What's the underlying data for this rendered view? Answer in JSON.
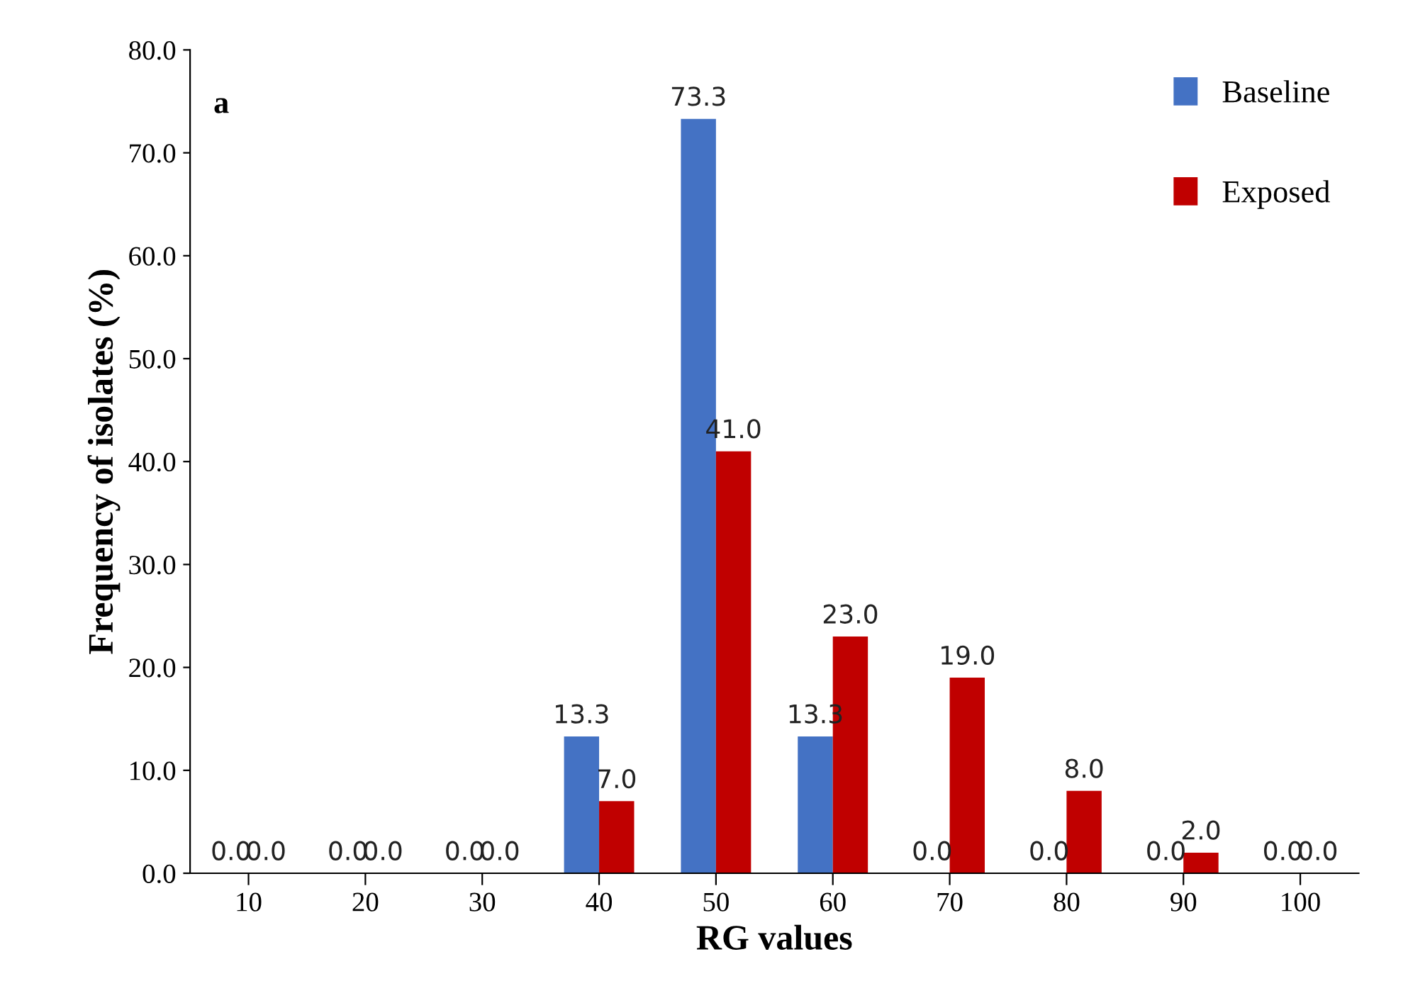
{
  "chart_data": {
    "type": "bar",
    "xlabel": "RG values",
    "ylabel": "Frequency of isolates (%)",
    "categories": [
      "10",
      "20",
      "30",
      "40",
      "50",
      "60",
      "70",
      "80",
      "90",
      "100"
    ],
    "series": [
      {
        "name": "Baseline",
        "color": "#4472c4",
        "values": [
          0,
          0,
          0,
          13.3,
          73.3,
          13.3,
          0,
          0,
          0,
          0
        ],
        "value_labels": [
          "0.0",
          "0.0",
          "0.0",
          "13.3",
          "73.3",
          "13.3",
          "0.0",
          "0.0",
          "0.0",
          "0.0"
        ]
      },
      {
        "name": "Exposed",
        "color": "#c00000",
        "values": [
          0,
          0,
          0,
          7.0,
          41.0,
          23.0,
          19.0,
          8.0,
          2.0,
          0
        ],
        "value_labels": [
          "0.0",
          "0.0",
          "0.0",
          "7.0",
          "41.0",
          "23.0",
          "19.0",
          "8.0",
          "2.0",
          "0.0"
        ]
      }
    ],
    "ylim": [
      0,
      80
    ],
    "yticks": [
      {
        "value": 0,
        "label": "0.0"
      },
      {
        "value": 10,
        "label": "10.0"
      },
      {
        "value": 20,
        "label": "20.0"
      },
      {
        "value": 30,
        "label": "30.0"
      },
      {
        "value": 40,
        "label": "40.0"
      },
      {
        "value": 50,
        "label": "50.0"
      },
      {
        "value": 60,
        "label": "60.0"
      },
      {
        "value": 70,
        "label": "70.0"
      },
      {
        "value": 80,
        "label": "80.0"
      }
    ],
    "annotations": [
      "a"
    ],
    "legend": "top right",
    "grid": false
  }
}
